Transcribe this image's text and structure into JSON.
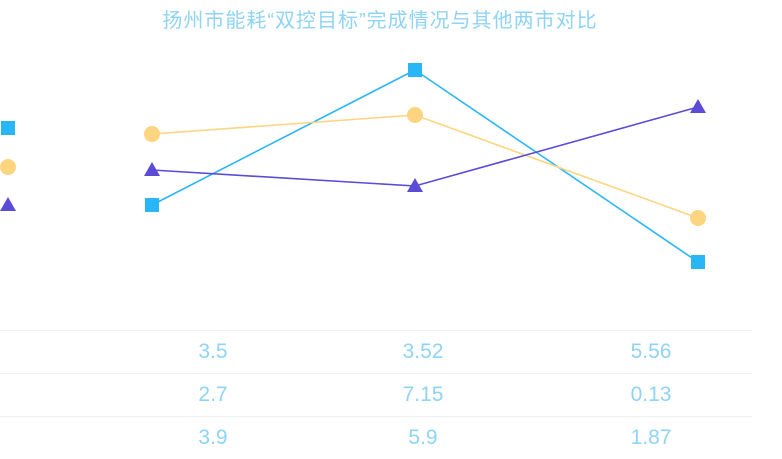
{
  "chart_data": {
    "type": "line",
    "title": "扬州市能耗“双控目标”完成情况与其他两市对比",
    "categories": [
      "",
      "",
      ""
    ],
    "series": [
      {
        "marker": "square",
        "color": "#29b6f6",
        "values": [
          3.5,
          3.52,
          5.56
        ]
      },
      {
        "marker": "circle",
        "color": "#fdd47f",
        "values": [
          2.7,
          7.15,
          0.13
        ]
      },
      {
        "marker": "triangle",
        "color": "#5b4bd6",
        "values": [
          3.9,
          5.9,
          1.87
        ]
      }
    ],
    "table": {
      "rows": [
        [
          "3.5",
          "3.52",
          "5.56"
        ],
        [
          "2.7",
          "7.15",
          "0.13"
        ],
        [
          "3.9",
          "5.9",
          "1.87"
        ]
      ]
    },
    "grid": false,
    "legend": "left"
  }
}
